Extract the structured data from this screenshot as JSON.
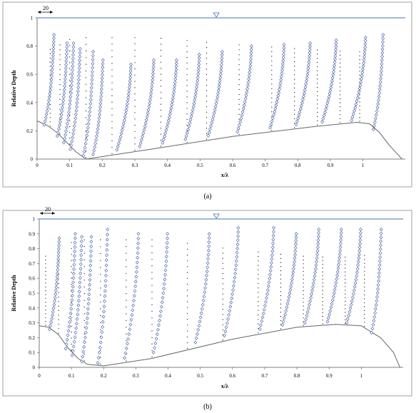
{
  "chart_data": [
    {
      "type": "scatter",
      "panel": "(a)",
      "xlabel": "x/λ",
      "ylabel": "Relative Depth",
      "xlim": [
        0,
        1.13
      ],
      "ylim": [
        0,
        1
      ],
      "xticks": [
        "0",
        "0.1",
        "0.2",
        "0.3",
        "0.4",
        "0.5",
        "0.6",
        "0.7",
        "0.8",
        "0.9",
        "1"
      ],
      "yticks": [
        "0",
        "0.2",
        "0.4",
        "0.6",
        "0.8",
        "1"
      ],
      "water_surface": 1.0,
      "scale_annotation": "20",
      "bed_profile": [
        [
          0,
          0.27
        ],
        [
          0.03,
          0.24
        ],
        [
          0.06,
          0.19
        ],
        [
          0.09,
          0.12
        ],
        [
          0.12,
          0.05
        ],
        [
          0.15,
          0
        ],
        [
          0.35,
          0.07
        ],
        [
          0.6,
          0.16
        ],
        [
          0.85,
          0.23
        ],
        [
          0.98,
          0.26
        ],
        [
          1.02,
          0.25
        ],
        [
          1.05,
          0.19
        ],
        [
          1.08,
          0.1
        ],
        [
          1.12,
          0
        ]
      ],
      "profiles": [
        {
          "x": 0.04,
          "top": 0.88,
          "shape": "bulge"
        },
        {
          "x": 0.08,
          "top": 0.82,
          "shape": "bulge"
        },
        {
          "x": 0.1,
          "top": 0.82,
          "shape": "bulge"
        },
        {
          "x": 0.12,
          "top": 0.78,
          "shape": "bulge"
        },
        {
          "x": 0.16,
          "top": 0.76,
          "shape": "bulge"
        },
        {
          "x": 0.19,
          "top": 0.7,
          "shape": "bulge"
        },
        {
          "x": 0.28,
          "top": 0.67,
          "shape": "slant"
        },
        {
          "x": 0.35,
          "top": 0.7,
          "shape": "slant"
        },
        {
          "x": 0.42,
          "top": 0.7,
          "shape": "slant"
        },
        {
          "x": 0.49,
          "top": 0.74,
          "shape": "slant"
        },
        {
          "x": 0.56,
          "top": 0.76,
          "shape": "slant"
        },
        {
          "x": 0.65,
          "top": 0.8,
          "shape": "slant"
        },
        {
          "x": 0.75,
          "top": 0.81,
          "shape": "slant"
        },
        {
          "x": 0.83,
          "top": 0.82,
          "shape": "slant"
        },
        {
          "x": 0.91,
          "top": 0.84,
          "shape": "slant"
        },
        {
          "x": 1.0,
          "top": 0.86,
          "shape": "slant"
        },
        {
          "x": 1.05,
          "top": 0.88,
          "shape": "bulge"
        }
      ],
      "dotted_lines": [
        0.04,
        0.07,
        0.1,
        0.15,
        0.23,
        0.3,
        0.38,
        0.46,
        0.52,
        0.62,
        0.72,
        0.79,
        0.86,
        0.93,
        0.99
      ]
    },
    {
      "type": "scatter",
      "panel": "(b)",
      "xlabel": "x/λ",
      "ylabel": "Relative Depth",
      "xlim": [
        0,
        1.13
      ],
      "ylim": [
        0,
        1
      ],
      "xticks": [
        "0",
        "0.1",
        "0.2",
        "0.3",
        "0.4",
        "0.5",
        "0.6",
        "0.7",
        "0.8",
        "0.9",
        "1"
      ],
      "yticks": [
        "0",
        "0.1",
        "0.2",
        "0.3",
        "0.4",
        "0.5",
        "0.6",
        "0.7",
        "0.8",
        "0.9",
        "1"
      ],
      "water_surface": 1.0,
      "scale_annotation": "20",
      "bed_profile": [
        [
          0,
          0.28
        ],
        [
          0.03,
          0.27
        ],
        [
          0.06,
          0.22
        ],
        [
          0.09,
          0.13
        ],
        [
          0.12,
          0.06
        ],
        [
          0.15,
          0.02
        ],
        [
          0.2,
          0.01
        ],
        [
          0.35,
          0.06
        ],
        [
          0.6,
          0.19
        ],
        [
          0.8,
          0.27
        ],
        [
          0.92,
          0.29
        ],
        [
          1.0,
          0.28
        ],
        [
          1.06,
          0.2
        ],
        [
          1.1,
          0.1
        ],
        [
          1.12,
          0
        ]
      ],
      "profiles": [
        {
          "x": 0.05,
          "top": 0.87,
          "shape": "bulge"
        },
        {
          "x": 0.1,
          "top": 0.9,
          "shape": "bulge"
        },
        {
          "x": 0.12,
          "top": 0.88,
          "shape": "bulge"
        },
        {
          "x": 0.15,
          "top": 0.88,
          "shape": "bulge"
        },
        {
          "x": 0.2,
          "top": 0.93,
          "shape": "bulge"
        },
        {
          "x": 0.3,
          "top": 0.9,
          "shape": "slant"
        },
        {
          "x": 0.39,
          "top": 0.9,
          "shape": "slant"
        },
        {
          "x": 0.52,
          "top": 0.9,
          "shape": "slant"
        },
        {
          "x": 0.61,
          "top": 0.94,
          "shape": "slant"
        },
        {
          "x": 0.72,
          "top": 0.94,
          "shape": "slant"
        },
        {
          "x": 0.79,
          "top": 0.9,
          "shape": "slant"
        },
        {
          "x": 0.86,
          "top": 0.93,
          "shape": "slant"
        },
        {
          "x": 0.93,
          "top": 0.93,
          "shape": "slant"
        },
        {
          "x": 0.99,
          "top": 0.93,
          "shape": "slant"
        },
        {
          "x": 1.05,
          "top": 0.93,
          "shape": "bulge"
        }
      ],
      "dotted_lines": [
        0.02,
        0.06,
        0.1,
        0.14,
        0.19,
        0.27,
        0.35,
        0.46,
        0.57,
        0.68,
        0.75,
        0.82,
        0.88,
        0.95,
        1.01
      ]
    }
  ]
}
